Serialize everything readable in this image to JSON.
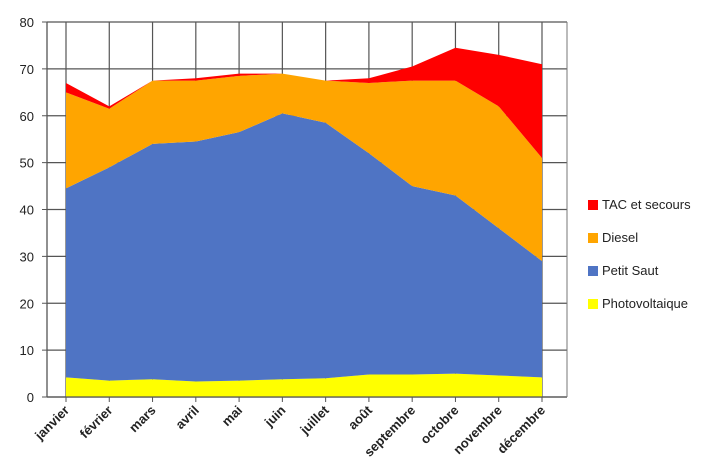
{
  "chart_data": {
    "type": "area",
    "stacked": true,
    "categories": [
      "janvier",
      "février",
      "mars",
      "avril",
      "mai",
      "juin",
      "juillet",
      "août",
      "septembre",
      "octobre",
      "novembre",
      "décembre"
    ],
    "series": [
      {
        "name": "Photovoltaique",
        "color": "#ffff00",
        "values": [
          4.2,
          3.5,
          3.8,
          3.3,
          3.5,
          3.8,
          4.0,
          4.8,
          4.8,
          5.0,
          4.6,
          4.2
        ]
      },
      {
        "name": "Petit Saut",
        "color": "#4f74c4",
        "values": [
          40.3,
          45.5,
          50.2,
          51.2,
          53.0,
          56.7,
          54.5,
          47.2,
          40.2,
          38.0,
          31.4,
          24.8
        ]
      },
      {
        "name": "Diesel",
        "color": "#ffa500",
        "values": [
          20.5,
          12.5,
          13.5,
          13.0,
          12.0,
          8.5,
          9.0,
          15.0,
          22.5,
          24.5,
          26.0,
          22.0
        ]
      },
      {
        "name": "TAC et secours",
        "color": "#ff0000",
        "values": [
          2.0,
          0.5,
          0.0,
          0.5,
          0.5,
          0.0,
          0.0,
          1.0,
          3.0,
          7.0,
          11.0,
          20.0
        ]
      }
    ],
    "ylim": [
      0,
      80
    ],
    "yticks": [
      0,
      10,
      20,
      30,
      40,
      50,
      60,
      70,
      80
    ],
    "grid": true,
    "legend_position": "right",
    "title": "",
    "xlabel": "",
    "ylabel": ""
  }
}
